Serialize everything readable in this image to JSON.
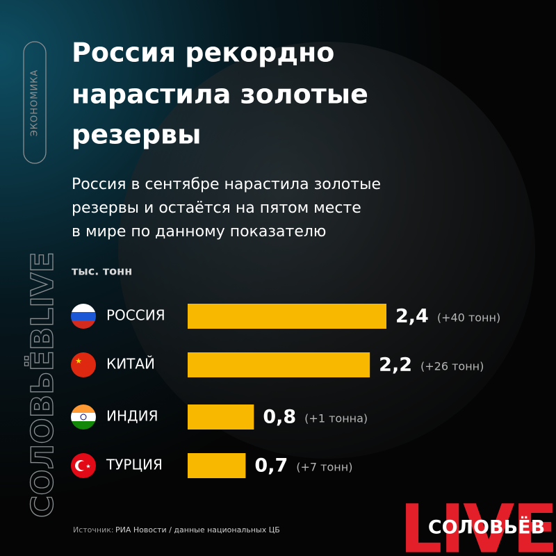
{
  "chart_data": {
    "type": "bar",
    "title": [
      "Россия рекордно",
      "нарастила золотые",
      "резервы"
    ],
    "subtitle": [
      "Россия в сентябре нарастила золотые",
      "резервы и остаётся на пятом месте",
      "в мире по данному показателю"
    ],
    "unit_label": "тыс. тонн",
    "categories": [
      "РОССИЯ",
      "КИТАЙ",
      "ИНДИЯ",
      "ТУРЦИЯ"
    ],
    "values": [
      2.4,
      2.2,
      0.8,
      0.7
    ],
    "value_labels": [
      "2,4",
      "2,2",
      "0,8",
      "0,7"
    ],
    "annotations": [
      "(+40 тонн)",
      "(+26 тонн)",
      "(+1 тонна)",
      "(+7 тонн)"
    ],
    "color": "#f9b800",
    "source_label": "Источник:",
    "source": "РИА Новости / данные национальных ЦБ",
    "side_brand": "СОЛОВЬЁВLIVE",
    "section": "ЭКОНОМИКА",
    "logo_name": "СОЛОВЬЁВ",
    "logo_live": "LIVE"
  }
}
